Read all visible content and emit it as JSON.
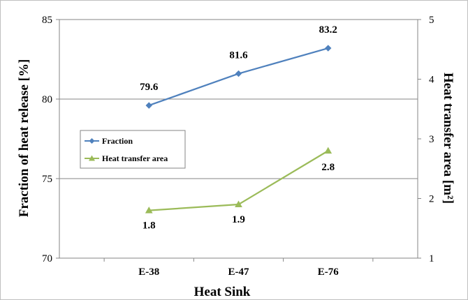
{
  "chart_data": {
    "type": "line",
    "xlabel": "Heat Sink",
    "ylabel": "Fraction of heat release [%]",
    "y2label": "Heat transfer area [m²]",
    "categories": [
      "E-38",
      "E-47",
      "E-76"
    ],
    "ylim": [
      70,
      85
    ],
    "y2lim": [
      1,
      5
    ],
    "yticks": [
      70,
      75,
      80,
      85
    ],
    "y2ticks": [
      1,
      2,
      3,
      4,
      5
    ],
    "grid": true,
    "legend_position": "left",
    "series": [
      {
        "name": "Fraction",
        "axis": "left",
        "values": [
          79.6,
          81.6,
          83.2
        ],
        "labels": [
          "79.6",
          "81.6",
          "83.2"
        ],
        "color": "#4f81bd",
        "marker": "diamond"
      },
      {
        "name": "Heat transfer area",
        "axis": "right",
        "values": [
          1.8,
          1.9,
          2.8
        ],
        "labels": [
          "1.8",
          "1.9",
          "2.8"
        ],
        "color": "#9bbb59",
        "marker": "triangle"
      }
    ]
  }
}
